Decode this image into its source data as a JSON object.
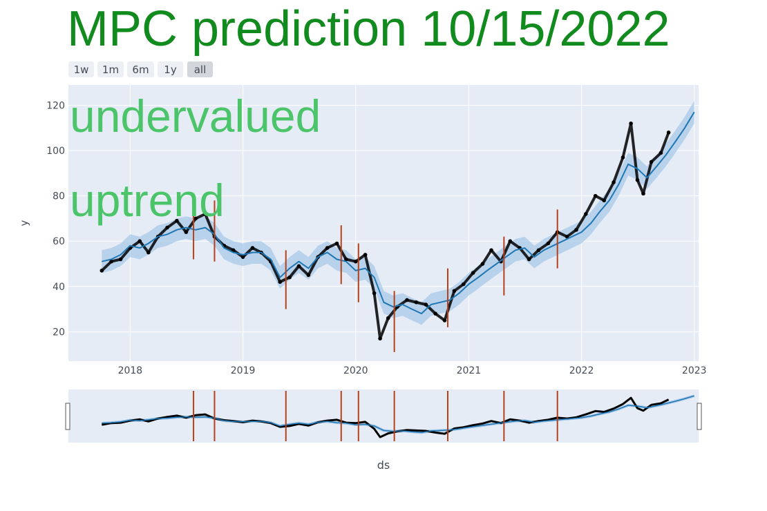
{
  "title": "MPC prediction 10/15/2022",
  "range_selector": {
    "buttons": [
      "1w",
      "1m",
      "6m",
      "1y",
      "all"
    ],
    "active": "all"
  },
  "annotations": [
    "undervalued",
    "uptrend"
  ],
  "colors": {
    "title": "#118a1e",
    "annotation": "#4cc46a",
    "plot_bg": "#e5ecf6",
    "forecast_line": "#1f77b4",
    "uncertainty_band": "#a9c9e8",
    "actual_points": "#000000",
    "changepoints": "#b5401a"
  },
  "chart_data": {
    "type": "scatter",
    "xlabel": "ds",
    "ylabel": "y",
    "x_ticks": [
      "2018",
      "2019",
      "2020",
      "2021",
      "2022",
      "2023"
    ],
    "y_ticks": [
      20,
      40,
      60,
      80,
      100,
      120
    ],
    "xlim": [
      "2017-06-15",
      "2023-01-15"
    ],
    "ylim": [
      7,
      129
    ],
    "grid": true,
    "range_slider": true,
    "series": [
      {
        "name": "",
        "kind": "actual",
        "x": [
          "2017-10-01",
          "2017-11-01",
          "2017-12-01",
          "2018-01-01",
          "2018-02-01",
          "2018-03-01",
          "2018-04-01",
          "2018-05-01",
          "2018-06-01",
          "2018-07-01",
          "2018-08-01",
          "2018-09-01",
          "2018-10-01",
          "2018-11-01",
          "2018-12-01",
          "2019-01-01",
          "2019-02-01",
          "2019-03-01",
          "2019-04-01",
          "2019-05-01",
          "2019-06-01",
          "2019-07-01",
          "2019-08-01",
          "2019-09-01",
          "2019-10-01",
          "2019-11-01",
          "2019-12-01",
          "2020-01-01",
          "2020-02-01",
          "2020-03-01",
          "2020-03-20",
          "2020-04-15",
          "2020-05-15",
          "2020-06-15",
          "2020-07-15",
          "2020-08-15",
          "2020-09-15",
          "2020-10-15",
          "2020-11-15",
          "2020-12-15",
          "2021-01-15",
          "2021-02-15",
          "2021-03-15",
          "2021-04-15",
          "2021-05-15",
          "2021-06-15",
          "2021-07-15",
          "2021-08-15",
          "2021-09-15",
          "2021-10-15",
          "2021-11-15",
          "2021-12-15",
          "2022-01-15",
          "2022-02-15",
          "2022-03-15",
          "2022-04-15",
          "2022-05-15",
          "2022-06-10",
          "2022-07-01",
          "2022-07-20",
          "2022-08-15",
          "2022-09-15",
          "2022-10-10"
        ],
        "y": [
          47,
          51,
          52,
          57,
          60,
          55,
          62,
          66,
          69,
          64,
          70,
          72,
          62,
          58,
          56,
          53,
          57,
          55,
          51,
          42,
          44,
          49,
          45,
          53,
          57,
          59,
          52,
          51,
          54,
          37,
          17,
          26,
          31,
          34,
          33,
          32,
          28,
          25,
          38,
          41,
          46,
          50,
          56,
          51,
          60,
          57,
          52,
          56,
          59,
          64,
          62,
          65,
          72,
          80,
          78,
          86,
          97,
          112,
          87,
          81,
          95,
          99,
          108
        ]
      },
      {
        "name": "",
        "kind": "forecast",
        "x": [
          "2017-10-01",
          "2017-11-01",
          "2017-12-01",
          "2018-01-01",
          "2018-02-01",
          "2018-03-01",
          "2018-04-01",
          "2018-05-01",
          "2018-06-01",
          "2018-07-01",
          "2018-08-01",
          "2018-09-01",
          "2018-10-01",
          "2018-11-01",
          "2018-12-01",
          "2019-01-01",
          "2019-02-01",
          "2019-03-01",
          "2019-04-01",
          "2019-05-01",
          "2019-06-01",
          "2019-07-01",
          "2019-08-01",
          "2019-09-01",
          "2019-10-01",
          "2019-11-01",
          "2019-12-01",
          "2020-01-01",
          "2020-02-01",
          "2020-03-01",
          "2020-04-01",
          "2020-05-01",
          "2020-06-01",
          "2020-07-01",
          "2020-08-01",
          "2020-09-01",
          "2020-10-01",
          "2020-11-01",
          "2020-12-01",
          "2021-01-01",
          "2021-02-01",
          "2021-03-01",
          "2021-04-01",
          "2021-05-01",
          "2021-06-01",
          "2021-07-01",
          "2021-08-01",
          "2021-09-01",
          "2021-10-01",
          "2021-11-01",
          "2021-12-01",
          "2022-01-01",
          "2022-02-01",
          "2022-03-01",
          "2022-04-01",
          "2022-05-01",
          "2022-06-01",
          "2022-07-01",
          "2022-08-01",
          "2022-09-01",
          "2022-10-01",
          "2022-11-01",
          "2022-12-01",
          "2023-01-01"
        ],
        "y": [
          51,
          52,
          54,
          58,
          57,
          59,
          62,
          63,
          65,
          66,
          65,
          66,
          63,
          57,
          55,
          54,
          55,
          55,
          52,
          44,
          48,
          51,
          48,
          53,
          55,
          52,
          51,
          47,
          48,
          44,
          33,
          31,
          32,
          30,
          28,
          32,
          33,
          34,
          37,
          41,
          44,
          47,
          50,
          53,
          56,
          57,
          53,
          56,
          58,
          60,
          62,
          64,
          68,
          73,
          78,
          85,
          94,
          92,
          88,
          93,
          98,
          104,
          110,
          117
        ]
      }
    ],
    "changepoints": [
      {
        "x": "2018-07-25",
        "y_low": 52,
        "y_high": 78
      },
      {
        "x": "2018-10-01",
        "y_low": 51,
        "y_high": 78
      },
      {
        "x": "2019-05-20",
        "y_low": 30,
        "y_high": 56
      },
      {
        "x": "2019-11-15",
        "y_low": 41,
        "y_high": 67
      },
      {
        "x": "2020-01-10",
        "y_low": 33,
        "y_high": 59
      },
      {
        "x": "2020-05-05",
        "y_low": 11,
        "y_high": 38
      },
      {
        "x": "2020-10-25",
        "y_low": 22,
        "y_high": 48
      },
      {
        "x": "2021-04-25",
        "y_low": 36,
        "y_high": 62
      },
      {
        "x": "2021-10-15",
        "y_low": 48,
        "y_high": 74
      }
    ]
  }
}
